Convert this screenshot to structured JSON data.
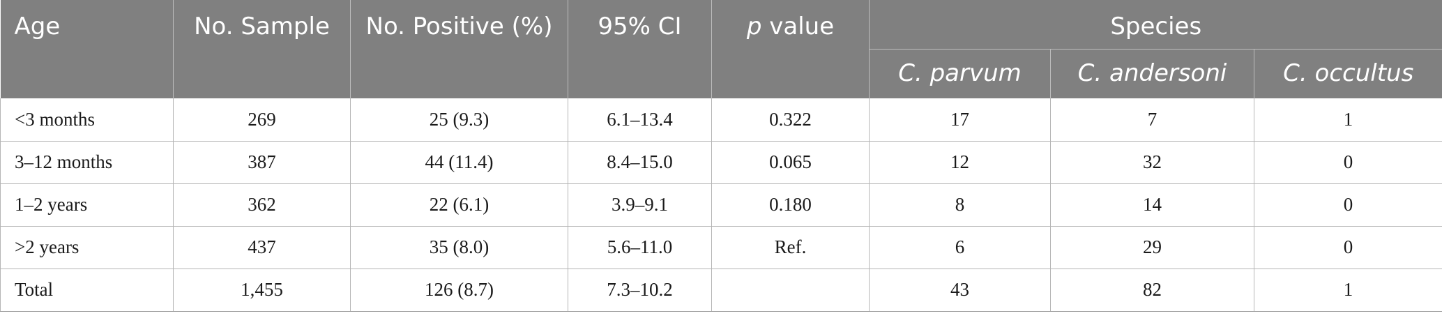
{
  "header": {
    "age": "Age",
    "no_sample": "No. Sample",
    "no_positive": "No. Positive (%)",
    "ci": "95% CI",
    "p_italic": "p",
    "p_rest": " value",
    "species": "Species",
    "species_cols": [
      "C. parvum",
      "C. andersoni",
      "C. occultus"
    ]
  },
  "rows": [
    {
      "age": "<3 months",
      "sample": "269",
      "positive": "25 (9.3)",
      "ci": "6.1–13.4",
      "p": "0.322",
      "parvum": "17",
      "andersoni": "7",
      "occultus": "1"
    },
    {
      "age": "3–12 months",
      "sample": "387",
      "positive": "44 (11.4)",
      "ci": "8.4–15.0",
      "p": "0.065",
      "parvum": "12",
      "andersoni": "32",
      "occultus": "0"
    },
    {
      "age": "1–2 years",
      "sample": "362",
      "positive": "22 (6.1)",
      "ci": "3.9–9.1",
      "p": "0.180",
      "parvum": "8",
      "andersoni": "14",
      "occultus": "0"
    },
    {
      "age": ">2 years",
      "sample": "437",
      "positive": "35 (8.0)",
      "ci": "5.6–11.0",
      "p": "Ref.",
      "parvum": "6",
      "andersoni": "29",
      "occultus": "0"
    },
    {
      "age": "Total",
      "sample": "1,455",
      "positive": "126 (8.7)",
      "ci": "7.3–10.2",
      "p": "",
      "parvum": "43",
      "andersoni": "82",
      "occultus": "1"
    }
  ]
}
